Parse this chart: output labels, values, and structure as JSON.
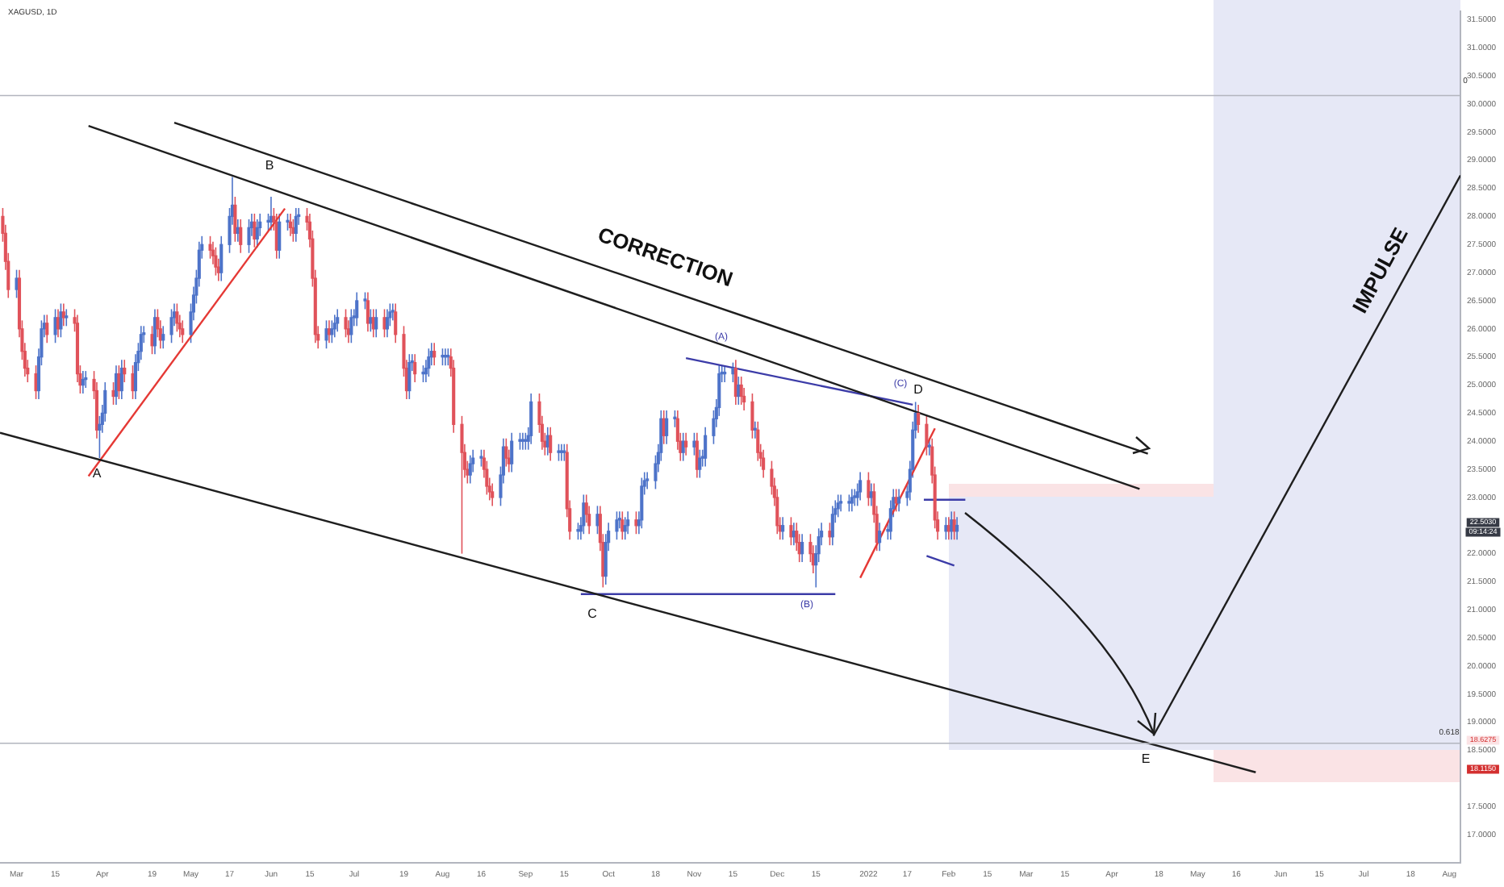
{
  "chart_data": {
    "type": "candlestick",
    "title": "XAGUSD, 1D",
    "x": [
      "2021-02-24",
      "2021-02-25",
      "2021-02-26",
      "2021-03-01",
      "2021-03-02",
      "2021-03-03",
      "2021-03-04",
      "2021-03-05",
      "2021-03-08",
      "2021-03-09",
      "2021-03-10",
      "2021-03-11",
      "2021-03-12",
      "2021-03-15",
      "2021-03-16",
      "2021-03-17",
      "2021-03-18",
      "2021-03-19",
      "2021-03-22",
      "2021-03-23",
      "2021-03-24",
      "2021-03-25",
      "2021-03-26",
      "2021-03-29",
      "2021-03-30",
      "2021-03-31",
      "2021-04-01",
      "2021-04-02",
      "2021-04-05",
      "2021-04-06",
      "2021-04-07",
      "2021-04-08",
      "2021-04-09",
      "2021-04-12",
      "2021-04-13",
      "2021-04-14",
      "2021-04-15",
      "2021-04-16",
      "2021-04-19",
      "2021-04-20",
      "2021-04-21",
      "2021-04-22",
      "2021-04-23",
      "2021-04-26",
      "2021-04-27",
      "2021-04-28",
      "2021-04-29",
      "2021-04-30",
      "2021-05-03",
      "2021-05-04",
      "2021-05-05",
      "2021-05-06",
      "2021-05-07",
      "2021-05-10",
      "2021-05-11",
      "2021-05-12",
      "2021-05-13",
      "2021-05-14",
      "2021-05-17",
      "2021-05-18",
      "2021-05-19",
      "2021-05-20",
      "2021-05-21",
      "2021-05-24",
      "2021-05-25",
      "2021-05-26",
      "2021-05-27",
      "2021-05-28",
      "2021-05-31",
      "2021-06-01",
      "2021-06-02",
      "2021-06-03",
      "2021-06-04",
      "2021-06-07",
      "2021-06-08",
      "2021-06-09",
      "2021-06-10",
      "2021-06-11",
      "2021-06-14",
      "2021-06-15",
      "2021-06-16",
      "2021-06-17",
      "2021-06-18",
      "2021-06-21",
      "2021-06-22",
      "2021-06-23",
      "2021-06-24",
      "2021-06-25",
      "2021-06-28",
      "2021-06-29",
      "2021-06-30",
      "2021-07-01",
      "2021-07-02",
      "2021-07-05",
      "2021-07-06",
      "2021-07-07",
      "2021-07-08",
      "2021-07-09",
      "2021-07-12",
      "2021-07-13",
      "2021-07-14",
      "2021-07-15",
      "2021-07-16",
      "2021-07-19",
      "2021-07-20",
      "2021-07-21",
      "2021-07-22",
      "2021-07-23",
      "2021-07-26",
      "2021-07-27",
      "2021-07-28",
      "2021-07-29",
      "2021-07-30",
      "2021-08-02",
      "2021-08-03",
      "2021-08-04",
      "2021-08-05",
      "2021-08-06",
      "2021-08-09",
      "2021-08-10",
      "2021-08-11",
      "2021-08-12",
      "2021-08-13",
      "2021-08-16",
      "2021-08-17",
      "2021-08-18",
      "2021-08-19",
      "2021-08-20",
      "2021-08-23",
      "2021-08-24",
      "2021-08-25",
      "2021-08-26",
      "2021-08-27",
      "2021-08-30",
      "2021-08-31",
      "2021-09-01",
      "2021-09-02",
      "2021-09-03",
      "2021-09-06",
      "2021-09-07",
      "2021-09-08",
      "2021-09-09",
      "2021-09-10",
      "2021-09-13",
      "2021-09-14",
      "2021-09-15",
      "2021-09-16",
      "2021-09-17",
      "2021-09-20",
      "2021-09-21",
      "2021-09-22",
      "2021-09-23",
      "2021-09-24",
      "2021-09-27",
      "2021-09-28",
      "2021-09-29",
      "2021-09-30",
      "2021-10-01",
      "2021-10-04",
      "2021-10-05",
      "2021-10-06",
      "2021-10-07",
      "2021-10-08",
      "2021-10-11",
      "2021-10-12",
      "2021-10-13",
      "2021-10-14",
      "2021-10-15",
      "2021-10-18",
      "2021-10-19",
      "2021-10-20",
      "2021-10-21",
      "2021-10-22",
      "2021-10-25",
      "2021-10-26",
      "2021-10-27",
      "2021-10-28",
      "2021-10-29",
      "2021-11-01",
      "2021-11-02",
      "2021-11-03",
      "2021-11-04",
      "2021-11-05",
      "2021-11-08",
      "2021-11-09",
      "2021-11-10",
      "2021-11-11",
      "2021-11-12",
      "2021-11-15",
      "2021-11-16",
      "2021-11-17",
      "2021-11-18",
      "2021-11-19",
      "2021-11-22",
      "2021-11-23",
      "2021-11-24",
      "2021-11-25",
      "2021-11-26",
      "2021-11-29",
      "2021-11-30",
      "2021-12-01",
      "2021-12-02",
      "2021-12-03",
      "2021-12-06",
      "2021-12-07",
      "2021-12-08",
      "2021-12-09",
      "2021-12-10",
      "2021-12-13",
      "2021-12-14",
      "2021-12-15",
      "2021-12-16",
      "2021-12-17",
      "2021-12-20",
      "2021-12-21",
      "2021-12-22",
      "2021-12-23",
      "2021-12-24",
      "2021-12-27",
      "2021-12-28",
      "2021-12-29",
      "2021-12-30",
      "2021-12-31",
      "2022-01-03",
      "2022-01-04",
      "2022-01-05",
      "2022-01-06",
      "2022-01-07",
      "2022-01-10",
      "2022-01-11",
      "2022-01-12",
      "2022-01-13",
      "2022-01-14",
      "2022-01-17",
      "2022-01-18",
      "2022-01-19",
      "2022-01-20",
      "2022-01-21",
      "2022-01-24",
      "2022-01-25",
      "2022-01-26",
      "2022-01-27",
      "2022-01-28",
      "2022-01-31",
      "2022-02-01",
      "2022-02-02",
      "2022-02-03",
      "2022-02-04"
    ],
    "ohlc": [
      [
        28.0,
        28.15,
        27.55,
        27.7
      ],
      [
        27.7,
        27.85,
        27.05,
        27.2
      ],
      [
        27.2,
        27.35,
        26.55,
        26.7
      ],
      [
        26.7,
        27.05,
        26.55,
        26.9
      ],
      [
        26.9,
        27.05,
        25.85,
        26.0
      ],
      [
        26.0,
        26.15,
        25.45,
        25.6
      ],
      [
        25.6,
        25.75,
        25.15,
        25.3
      ],
      [
        25.3,
        25.45,
        25.05,
        25.2
      ],
      [
        25.2,
        25.35,
        24.75,
        24.9
      ],
      [
        24.9,
        25.65,
        24.75,
        25.5
      ],
      [
        25.5,
        26.15,
        25.35,
        26.0
      ],
      [
        26.0,
        26.25,
        25.85,
        26.1
      ],
      [
        26.1,
        26.25,
        25.75,
        25.9
      ],
      [
        25.9,
        26.35,
        25.75,
        26.2
      ],
      [
        26.2,
        26.35,
        25.85,
        26.0
      ],
      [
        26.0,
        26.45,
        25.85,
        26.3
      ],
      [
        26.3,
        26.45,
        26.05,
        26.2
      ],
      [
        26.2,
        26.35,
        26.05,
        26.2
      ],
      [
        26.2,
        26.35,
        25.95,
        26.1
      ],
      [
        26.1,
        26.25,
        25.05,
        25.2
      ],
      [
        25.2,
        25.35,
        24.85,
        25.0
      ],
      [
        25.0,
        25.25,
        24.85,
        25.1
      ],
      [
        25.1,
        25.25,
        24.95,
        25.1
      ],
      [
        25.1,
        25.25,
        24.75,
        24.9
      ],
      [
        24.9,
        25.05,
        24.05,
        24.2
      ],
      [
        24.2,
        24.45,
        23.7,
        24.3
      ],
      [
        24.3,
        24.65,
        24.15,
        24.5
      ],
      [
        24.5,
        25.05,
        24.35,
        24.9
      ],
      [
        24.9,
        25.05,
        24.65,
        24.8
      ],
      [
        24.8,
        25.35,
        24.65,
        25.2
      ],
      [
        25.2,
        25.35,
        24.75,
        24.9
      ],
      [
        24.9,
        25.45,
        24.75,
        25.3
      ],
      [
        25.3,
        25.45,
        25.05,
        25.2
      ],
      [
        25.2,
        25.35,
        24.75,
        24.9
      ],
      [
        24.9,
        25.55,
        24.75,
        25.4
      ],
      [
        25.4,
        25.75,
        25.25,
        25.6
      ],
      [
        25.6,
        26.05,
        25.45,
        25.9
      ],
      [
        25.9,
        26.05,
        25.75,
        25.9
      ],
      [
        25.9,
        26.05,
        25.55,
        25.7
      ],
      [
        25.7,
        26.35,
        25.55,
        26.2
      ],
      [
        26.2,
        26.35,
        25.85,
        26.0
      ],
      [
        26.0,
        26.15,
        25.65,
        25.8
      ],
      [
        25.8,
        26.05,
        25.65,
        25.9
      ],
      [
        25.9,
        26.35,
        25.75,
        26.2
      ],
      [
        26.2,
        26.45,
        26.05,
        26.3
      ],
      [
        26.3,
        26.45,
        25.95,
        26.1
      ],
      [
        26.1,
        26.25,
        25.85,
        26.0
      ],
      [
        26.0,
        26.15,
        25.75,
        25.9
      ],
      [
        25.9,
        26.45,
        25.75,
        26.3
      ],
      [
        26.3,
        26.75,
        26.15,
        26.6
      ],
      [
        26.6,
        27.05,
        26.45,
        26.9
      ],
      [
        26.9,
        27.55,
        26.75,
        27.4
      ],
      [
        27.4,
        27.65,
        27.25,
        27.5
      ],
      [
        27.5,
        27.65,
        27.25,
        27.4
      ],
      [
        27.4,
        27.55,
        27.15,
        27.3
      ],
      [
        27.3,
        27.45,
        26.95,
        27.1
      ],
      [
        27.1,
        27.25,
        26.85,
        27.0
      ],
      [
        27.0,
        27.65,
        26.85,
        27.5
      ],
      [
        27.5,
        28.15,
        27.35,
        28.0
      ],
      [
        28.0,
        28.7,
        27.85,
        28.2
      ],
      [
        28.2,
        28.35,
        27.55,
        27.7
      ],
      [
        27.7,
        27.95,
        27.55,
        27.8
      ],
      [
        27.8,
        27.95,
        27.35,
        27.5
      ],
      [
        27.5,
        27.95,
        27.35,
        27.8
      ],
      [
        27.8,
        28.05,
        27.65,
        27.9
      ],
      [
        27.9,
        28.05,
        27.45,
        27.6
      ],
      [
        27.6,
        27.95,
        27.45,
        27.8
      ],
      [
        27.8,
        28.05,
        27.65,
        27.9
      ],
      [
        27.9,
        28.05,
        27.75,
        27.9
      ],
      [
        27.9,
        28.35,
        27.75,
        28.0
      ],
      [
        28.0,
        28.15,
        27.75,
        27.9
      ],
      [
        27.9,
        28.05,
        27.25,
        27.4
      ],
      [
        27.4,
        28.05,
        27.25,
        27.9
      ],
      [
        27.9,
        28.05,
        27.75,
        27.9
      ],
      [
        27.9,
        28.05,
        27.65,
        27.8
      ],
      [
        27.8,
        27.95,
        27.55,
        27.7
      ],
      [
        27.7,
        28.15,
        27.55,
        28.0
      ],
      [
        28.0,
        28.15,
        27.85,
        28.0
      ],
      [
        28.0,
        28.15,
        27.75,
        27.9
      ],
      [
        27.9,
        28.05,
        27.45,
        27.6
      ],
      [
        27.6,
        27.75,
        26.75,
        26.9
      ],
      [
        26.9,
        27.05,
        25.75,
        25.9
      ],
      [
        25.9,
        26.05,
        25.65,
        25.8
      ],
      [
        25.8,
        26.15,
        25.65,
        26.0
      ],
      [
        26.0,
        26.15,
        25.75,
        25.9
      ],
      [
        25.9,
        26.15,
        25.75,
        26.0
      ],
      [
        26.0,
        26.25,
        25.85,
        26.1
      ],
      [
        26.1,
        26.35,
        25.95,
        26.2
      ],
      [
        26.2,
        26.35,
        25.85,
        26.0
      ],
      [
        26.0,
        26.15,
        25.75,
        25.9
      ],
      [
        25.9,
        26.35,
        25.75,
        26.2
      ],
      [
        26.2,
        26.35,
        26.05,
        26.2
      ],
      [
        26.2,
        26.65,
        26.05,
        26.5
      ],
      [
        26.5,
        26.65,
        26.35,
        26.5
      ],
      [
        26.5,
        26.65,
        25.95,
        26.1
      ],
      [
        26.1,
        26.35,
        25.95,
        26.2
      ],
      [
        26.2,
        26.35,
        25.85,
        26.0
      ],
      [
        26.0,
        26.35,
        25.85,
        26.2
      ],
      [
        26.2,
        26.35,
        25.85,
        26.0
      ],
      [
        26.0,
        26.35,
        25.85,
        26.2
      ],
      [
        26.2,
        26.45,
        26.05,
        26.3
      ],
      [
        26.3,
        26.45,
        26.15,
        26.3
      ],
      [
        26.3,
        26.45,
        25.75,
        25.9
      ],
      [
        25.9,
        26.05,
        25.15,
        25.3
      ],
      [
        25.3,
        25.45,
        24.75,
        24.9
      ],
      [
        24.9,
        25.55,
        24.75,
        25.4
      ],
      [
        25.4,
        25.55,
        25.25,
        25.4
      ],
      [
        25.4,
        25.55,
        25.05,
        25.2
      ],
      [
        25.2,
        25.35,
        25.05,
        25.2
      ],
      [
        25.2,
        25.45,
        25.05,
        25.3
      ],
      [
        25.3,
        25.65,
        25.15,
        25.5
      ],
      [
        25.5,
        25.75,
        25.35,
        25.6
      ],
      [
        25.6,
        25.75,
        25.35,
        25.5
      ],
      [
        25.5,
        25.65,
        25.35,
        25.5
      ],
      [
        25.5,
        25.65,
        25.35,
        25.5
      ],
      [
        25.5,
        25.65,
        25.35,
        25.5
      ],
      [
        25.5,
        25.65,
        25.15,
        25.3
      ],
      [
        25.3,
        25.45,
        24.15,
        24.3
      ],
      [
        24.3,
        24.45,
        22.0,
        23.8
      ],
      [
        23.8,
        23.95,
        23.35,
        23.5
      ],
      [
        23.5,
        23.65,
        23.25,
        23.4
      ],
      [
        23.4,
        23.75,
        23.25,
        23.6
      ],
      [
        23.6,
        23.85,
        23.45,
        23.7
      ],
      [
        23.7,
        23.85,
        23.55,
        23.7
      ],
      [
        23.7,
        23.85,
        23.35,
        23.5
      ],
      [
        23.5,
        23.65,
        23.05,
        23.2
      ],
      [
        23.2,
        23.35,
        22.95,
        23.1
      ],
      [
        23.1,
        23.25,
        22.85,
        23.0
      ],
      [
        23.0,
        23.55,
        22.85,
        23.4
      ],
      [
        23.4,
        24.05,
        23.25,
        23.9
      ],
      [
        23.9,
        24.05,
        23.55,
        23.7
      ],
      [
        23.7,
        23.85,
        23.45,
        23.6
      ],
      [
        23.6,
        24.15,
        23.45,
        24.0
      ],
      [
        24.0,
        24.15,
        23.85,
        24.0
      ],
      [
        24.0,
        24.15,
        23.85,
        24.0
      ],
      [
        24.0,
        24.15,
        23.85,
        24.0
      ],
      [
        24.0,
        24.25,
        23.85,
        24.1
      ],
      [
        24.1,
        24.85,
        23.95,
        24.7
      ],
      [
        24.7,
        24.85,
        24.15,
        24.3
      ],
      [
        24.3,
        24.45,
        23.85,
        24.0
      ],
      [
        24.0,
        24.15,
        23.75,
        23.9
      ],
      [
        23.9,
        24.25,
        23.75,
        24.1
      ],
      [
        24.1,
        24.25,
        23.65,
        23.8
      ],
      [
        23.8,
        23.95,
        23.65,
        23.8
      ],
      [
        23.8,
        23.95,
        23.65,
        23.8
      ],
      [
        23.8,
        23.95,
        23.65,
        23.8
      ],
      [
        23.8,
        23.95,
        22.65,
        22.8
      ],
      [
        22.8,
        22.95,
        22.25,
        22.4
      ],
      [
        22.4,
        22.55,
        22.25,
        22.4
      ],
      [
        22.4,
        22.65,
        22.25,
        22.5
      ],
      [
        22.5,
        23.05,
        22.35,
        22.9
      ],
      [
        22.9,
        23.05,
        22.55,
        22.7
      ],
      [
        22.7,
        22.85,
        22.35,
        22.5
      ],
      [
        22.5,
        22.85,
        22.35,
        22.7
      ],
      [
        22.7,
        22.85,
        22.05,
        22.2
      ],
      [
        22.2,
        22.35,
        21.4,
        21.6
      ],
      [
        21.6,
        22.35,
        21.45,
        22.2
      ],
      [
        22.2,
        22.55,
        22.05,
        22.4
      ],
      [
        22.4,
        22.75,
        22.25,
        22.6
      ],
      [
        22.6,
        22.75,
        22.45,
        22.6
      ],
      [
        22.6,
        22.75,
        22.25,
        22.4
      ],
      [
        22.4,
        22.65,
        22.25,
        22.5
      ],
      [
        22.5,
        22.75,
        22.35,
        22.6
      ],
      [
        22.6,
        22.75,
        22.35,
        22.5
      ],
      [
        22.5,
        22.75,
        22.35,
        22.6
      ],
      [
        22.6,
        23.35,
        22.45,
        23.2
      ],
      [
        23.2,
        23.45,
        23.05,
        23.3
      ],
      [
        23.3,
        23.45,
        23.15,
        23.3
      ],
      [
        23.3,
        23.75,
        23.15,
        23.6
      ],
      [
        23.6,
        23.95,
        23.45,
        23.8
      ],
      [
        23.8,
        24.55,
        23.65,
        24.4
      ],
      [
        24.4,
        24.55,
        23.95,
        24.1
      ],
      [
        24.1,
        24.55,
        23.95,
        24.4
      ],
      [
        24.4,
        24.55,
        24.25,
        24.4
      ],
      [
        24.4,
        24.55,
        23.85,
        24.0
      ],
      [
        24.0,
        24.15,
        23.65,
        23.8
      ],
      [
        23.8,
        24.15,
        23.65,
        24.0
      ],
      [
        24.0,
        24.15,
        23.75,
        23.9
      ],
      [
        23.9,
        24.15,
        23.75,
        24.0
      ],
      [
        24.0,
        24.15,
        23.35,
        23.5
      ],
      [
        23.5,
        23.85,
        23.35,
        23.7
      ],
      [
        23.7,
        23.85,
        23.55,
        23.7
      ],
      [
        23.7,
        24.25,
        23.55,
        24.1
      ],
      [
        24.1,
        24.55,
        23.95,
        24.4
      ],
      [
        24.4,
        24.75,
        24.25,
        24.6
      ],
      [
        24.6,
        25.35,
        24.45,
        25.2
      ],
      [
        25.2,
        25.35,
        25.05,
        25.2
      ],
      [
        25.2,
        25.35,
        25.05,
        25.2
      ],
      [
        25.2,
        25.4,
        25.05,
        25.3
      ],
      [
        25.3,
        25.45,
        24.65,
        24.8
      ],
      [
        24.8,
        25.15,
        24.65,
        25.0
      ],
      [
        25.0,
        25.15,
        24.65,
        24.8
      ],
      [
        24.8,
        24.95,
        24.55,
        24.7
      ],
      [
        24.7,
        24.85,
        24.05,
        24.2
      ],
      [
        24.2,
        24.35,
        24.05,
        24.2
      ],
      [
        24.2,
        24.35,
        23.65,
        23.8
      ],
      [
        23.8,
        23.95,
        23.55,
        23.7
      ],
      [
        23.7,
        23.85,
        23.35,
        23.5
      ],
      [
        23.5,
        23.65,
        23.05,
        23.2
      ],
      [
        23.2,
        23.35,
        22.85,
        23.0
      ],
      [
        23.0,
        23.15,
        22.35,
        22.5
      ],
      [
        22.5,
        22.65,
        22.25,
        22.4
      ],
      [
        22.4,
        22.65,
        22.25,
        22.5
      ],
      [
        22.5,
        22.65,
        22.15,
        22.3
      ],
      [
        22.3,
        22.55,
        22.15,
        22.4
      ],
      [
        22.4,
        22.55,
        22.05,
        22.2
      ],
      [
        22.2,
        22.35,
        21.85,
        22.0
      ],
      [
        22.0,
        22.35,
        21.85,
        22.2
      ],
      [
        22.2,
        22.35,
        21.85,
        22.0
      ],
      [
        22.0,
        22.15,
        21.65,
        21.8
      ],
      [
        21.8,
        22.15,
        21.4,
        22.0
      ],
      [
        22.0,
        22.45,
        21.85,
        22.3
      ],
      [
        22.3,
        22.55,
        22.15,
        22.4
      ],
      [
        22.4,
        22.55,
        22.15,
        22.3
      ],
      [
        22.3,
        22.85,
        22.15,
        22.7
      ],
      [
        22.7,
        22.95,
        22.55,
        22.8
      ],
      [
        22.8,
        23.05,
        22.65,
        22.9
      ],
      [
        22.9,
        23.05,
        22.75,
        22.9
      ],
      [
        22.9,
        23.05,
        22.75,
        22.9
      ],
      [
        22.9,
        23.15,
        22.75,
        23.0
      ],
      [
        23.0,
        23.15,
        22.85,
        23.0
      ],
      [
        23.0,
        23.25,
        22.85,
        23.1
      ],
      [
        23.1,
        23.45,
        22.95,
        23.3
      ],
      [
        23.3,
        23.45,
        22.85,
        23.0
      ],
      [
        23.0,
        23.25,
        22.85,
        23.1
      ],
      [
        23.1,
        23.25,
        22.55,
        22.7
      ],
      [
        22.7,
        22.85,
        22.05,
        22.2
      ],
      [
        22.2,
        22.55,
        22.05,
        22.4
      ],
      [
        22.4,
        22.55,
        22.25,
        22.4
      ],
      [
        22.4,
        22.95,
        22.25,
        22.8
      ],
      [
        22.8,
        23.15,
        22.65,
        23.0
      ],
      [
        23.0,
        23.15,
        22.75,
        22.9
      ],
      [
        22.9,
        23.15,
        22.75,
        23.0
      ],
      [
        23.0,
        23.25,
        22.85,
        23.1
      ],
      [
        23.1,
        23.65,
        22.95,
        23.5
      ],
      [
        23.5,
        24.35,
        23.35,
        24.2
      ],
      [
        24.2,
        24.7,
        24.05,
        24.5
      ],
      [
        24.5,
        24.65,
        24.15,
        24.3
      ],
      [
        24.3,
        24.45,
        23.75,
        23.9
      ],
      [
        23.9,
        24.05,
        23.75,
        23.9
      ],
      [
        23.9,
        24.05,
        23.25,
        23.4
      ],
      [
        23.4,
        23.55,
        22.45,
        22.6
      ],
      [
        22.6,
        22.75,
        22.25,
        22.4
      ],
      [
        22.4,
        22.65,
        22.25,
        22.5
      ],
      [
        22.5,
        22.65,
        22.25,
        22.4
      ],
      [
        22.4,
        22.75,
        22.25,
        22.6
      ],
      [
        22.6,
        22.75,
        22.25,
        22.4
      ],
      [
        22.4,
        22.65,
        22.25,
        22.503
      ]
    ],
    "xlim": [
      "2021-02-23",
      "2022-08-05"
    ],
    "xticks": [
      {
        "value": "2021-03-01",
        "label": "Mar"
      },
      {
        "value": "2021-03-15",
        "label": "15"
      },
      {
        "value": "2021-04-01",
        "label": "Apr"
      },
      {
        "value": "2021-04-19",
        "label": "19"
      },
      {
        "value": "2021-05-03",
        "label": "May"
      },
      {
        "value": "2021-05-17",
        "label": "17"
      },
      {
        "value": "2021-06-01",
        "label": "Jun"
      },
      {
        "value": "2021-06-15",
        "label": "15"
      },
      {
        "value": "2021-07-01",
        "label": "Jul"
      },
      {
        "value": "2021-07-19",
        "label": "19"
      },
      {
        "value": "2021-08-02",
        "label": "Aug"
      },
      {
        "value": "2021-08-16",
        "label": "16"
      },
      {
        "value": "2021-09-01",
        "label": "Sep"
      },
      {
        "value": "2021-09-15",
        "label": "15"
      },
      {
        "value": "2021-10-01",
        "label": "Oct"
      },
      {
        "value": "2021-10-18",
        "label": "18"
      },
      {
        "value": "2021-11-01",
        "label": "Nov"
      },
      {
        "value": "2021-11-15",
        "label": "15"
      },
      {
        "value": "2021-12-01",
        "label": "Dec"
      },
      {
        "value": "2021-12-15",
        "label": "15"
      },
      {
        "value": "2022-01-03",
        "label": "2022"
      },
      {
        "value": "2022-01-17",
        "label": "17"
      },
      {
        "value": "2022-02-01",
        "label": "Feb"
      },
      {
        "value": "2022-02-15",
        "label": "15"
      },
      {
        "value": "2022-03-01",
        "label": "Mar"
      },
      {
        "value": "2022-03-15",
        "label": "15"
      },
      {
        "value": "2022-04-01",
        "label": "Apr"
      },
      {
        "value": "2022-04-18",
        "label": "18"
      },
      {
        "value": "2022-05-02",
        "label": "May"
      },
      {
        "value": "2022-05-16",
        "label": "16"
      },
      {
        "value": "2022-06-01",
        "label": "Jun"
      },
      {
        "value": "2022-06-15",
        "label": "15"
      },
      {
        "value": "2022-07-01",
        "label": "Jul"
      },
      {
        "value": "2022-07-18",
        "label": "18"
      },
      {
        "value": "2022-08-01",
        "label": "Aug"
      }
    ],
    "ylim": [
      16.5,
      31.65
    ],
    "yticks": [
      {
        "value": 17,
        "label": "17.0000"
      },
      {
        "value": 17.5,
        "label": "17.5000"
      },
      {
        "value": 18.5,
        "label": "18.5000"
      },
      {
        "value": 19,
        "label": "19.0000"
      },
      {
        "value": 19.5,
        "label": "19.5000"
      },
      {
        "value": 20,
        "label": "20.0000"
      },
      {
        "value": 20.5,
        "label": "20.5000"
      },
      {
        "value": 21,
        "label": "21.0000"
      },
      {
        "value": 21.5,
        "label": "21.5000"
      },
      {
        "value": 22,
        "label": "22.0000"
      },
      {
        "value": 23,
        "label": "23.0000"
      },
      {
        "value": 23.5,
        "label": "23.5000"
      },
      {
        "value": 24,
        "label": "24.0000"
      },
      {
        "value": 24.5,
        "label": "24.5000"
      },
      {
        "value": 25,
        "label": "25.0000"
      },
      {
        "value": 25.5,
        "label": "25.5000"
      },
      {
        "value": 26,
        "label": "26.0000"
      },
      {
        "value": 26.5,
        "label": "26.5000"
      },
      {
        "value": 27,
        "label": "27.0000"
      },
      {
        "value": 27.5,
        "label": "27.5000"
      },
      {
        "value": 28,
        "label": "28.0000"
      },
      {
        "value": 28.5,
        "label": "28.5000"
      },
      {
        "value": 29,
        "label": "29.0000"
      },
      {
        "value": 29.5,
        "label": "29.5000"
      },
      {
        "value": 30,
        "label": "30.0000"
      },
      {
        "value": 30.5,
        "label": "30.5000"
      },
      {
        "value": 31,
        "label": "31.0000"
      },
      {
        "value": 31.5,
        "label": "31.5000"
      }
    ],
    "series": [
      {
        "type": "line",
        "color": "#1e1e1e",
        "x": [
          "2021-03-27",
          "2022-04-11"
        ],
        "values": [
          29.61,
          23.15
        ]
      },
      {
        "type": "line",
        "color": "#1e1e1e",
        "x": [
          "2021-04-27",
          "2022-04-14"
        ],
        "values": [
          29.67,
          23.78
        ]
      },
      {
        "type": "line",
        "color": "#1e1e1e",
        "x": [
          "2021-02-23",
          "2022-05-23"
        ],
        "values": [
          24.15,
          18.11
        ]
      },
      {
        "type": "line",
        "color": "#3c3ca8",
        "x": [
          "2021-10-29",
          "2022-01-19"
        ],
        "values": [
          25.48,
          24.65
        ]
      },
      {
        "type": "line",
        "color": "#3c3ca8",
        "x": [
          "2021-09-21",
          "2021-12-22"
        ],
        "values": [
          21.28,
          21.28
        ]
      },
      {
        "type": "line",
        "color": "#3c3ca8",
        "x": [
          "2022-01-23",
          "2022-02-07"
        ],
        "values": [
          22.96,
          22.96
        ]
      },
      {
        "type": "line",
        "color": "#3c3ca8",
        "x": [
          "2022-01-24",
          "2022-02-03"
        ],
        "values": [
          21.96,
          21.79
        ]
      },
      {
        "type": "line",
        "color": "#e53935",
        "x": [
          "2021-03-27",
          "2021-06-06"
        ],
        "values": [
          23.38,
          28.14
        ]
      },
      {
        "type": "line",
        "color": "#e53935",
        "x": [
          "2021-12-31",
          "2022-01-27"
        ],
        "values": [
          21.57,
          24.23
        ]
      },
      {
        "type": "line",
        "color": "#1e1e1e",
        "x": [
          "2022-04-16",
          "2022-08-05"
        ],
        "values": [
          18.76,
          28.73
        ]
      }
    ],
    "ref_lines": [
      {
        "axis": "y",
        "value": 30.15,
        "color": "#b2b5be"
      },
      {
        "axis": "y",
        "value": 18.6275,
        "color": "#b2b5be"
      }
    ],
    "annotations": [
      "A",
      "B",
      "C",
      "D",
      "E",
      "(A)",
      "(B)",
      "(C)",
      "22.5030",
      "18.6275",
      "18.1150",
      "CORRECTION",
      "IMPULSE",
      "09:14:24",
      "0",
      "0.618"
    ]
  }
}
